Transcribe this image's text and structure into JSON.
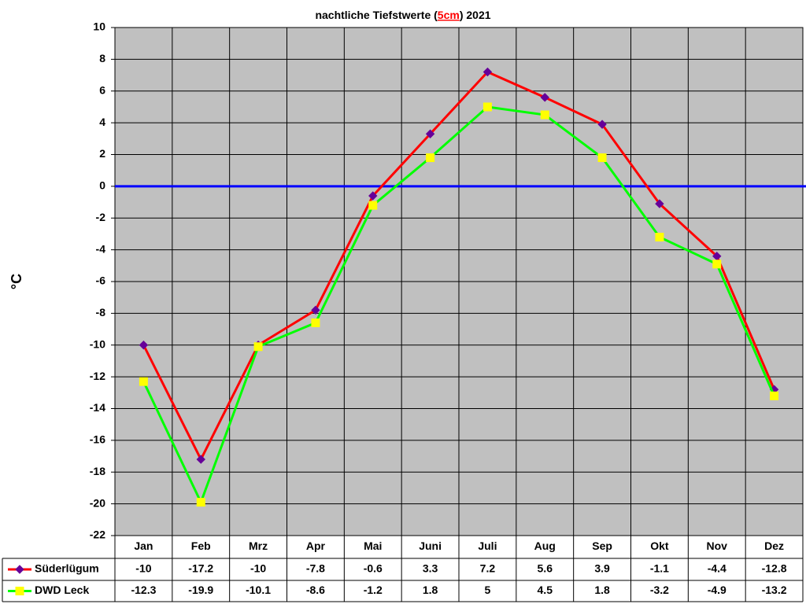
{
  "chart_data": {
    "type": "line",
    "title": "nachtliche Tiefstwerte (",
    "title_highlight": "5cm",
    "title_suffix": ") 2021",
    "title_highlight_color": "#ff0000",
    "ylabel": "°C",
    "categories": [
      "Jan",
      "Feb",
      "Mrz",
      "Apr",
      "Mai",
      "Juni",
      "Juli",
      "Aug",
      "Sep",
      "Okt",
      "Nov",
      "Dez"
    ],
    "series": [
      {
        "name": "Süderlügum",
        "color": "#ff0000",
        "marker": "diamond",
        "marker_color": "#660099",
        "values": [
          -10,
          -17.2,
          -10,
          -7.8,
          -0.6,
          3.3,
          7.2,
          5.6,
          3.9,
          -1.1,
          -4.4,
          -12.8
        ]
      },
      {
        "name": "DWD Leck",
        "color": "#00ff00",
        "marker": "square",
        "marker_color": "#ffff00",
        "values": [
          -12.3,
          -19.9,
          -10.1,
          -8.6,
          -1.2,
          1.8,
          5,
          4.5,
          1.8,
          -3.2,
          -4.9,
          -13.2
        ]
      }
    ],
    "ylim": [
      -22,
      10
    ],
    "yticks": [
      -22,
      -20,
      -18,
      -16,
      -14,
      -12,
      -10,
      -8,
      -6,
      -4,
      -2,
      0,
      2,
      4,
      6,
      8,
      10
    ],
    "grid": true,
    "plot_background": "#c0c0c0",
    "zero_line_color": "#0000ff",
    "data_table": true
  }
}
